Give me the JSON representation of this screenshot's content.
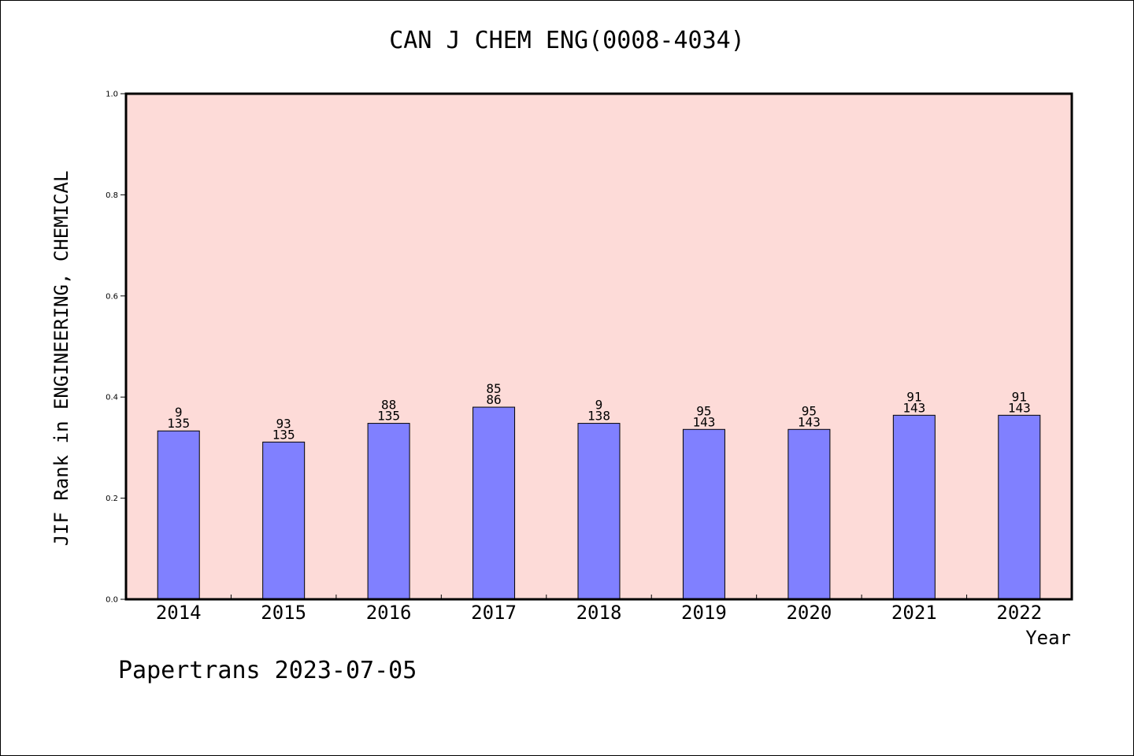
{
  "title": "CAN J CHEM ENG(0008-4034)",
  "footer": "Papertrans 2023-07-05",
  "colors": {
    "plot_background": "#fddbd8",
    "bar_fill": "#8080ff"
  },
  "chart_data": {
    "type": "bar",
    "title": "CAN J CHEM ENG(0008-4034)",
    "xlabel": "Year",
    "ylabel": "JIF Rank in ENGINEERING, CHEMICAL",
    "ylim": [
      0,
      1.0
    ],
    "yticks": [
      "0.0",
      "0.2",
      "0.4",
      "0.6",
      "0.8",
      "1.0"
    ],
    "grid": false,
    "categories": [
      "2014",
      "2015",
      "2016",
      "2017",
      "2018",
      "2019",
      "2020",
      "2021",
      "2022"
    ],
    "values": [
      0.333,
      0.311,
      0.348,
      0.38,
      0.348,
      0.336,
      0.336,
      0.364,
      0.364
    ],
    "labels_top": [
      "9",
      "93",
      "88",
      "85",
      "9",
      "95",
      "95",
      "91",
      "91"
    ],
    "labels_bottom": [
      "135",
      "135",
      "135",
      "86",
      "138",
      "143",
      "143",
      "143",
      "143"
    ]
  }
}
